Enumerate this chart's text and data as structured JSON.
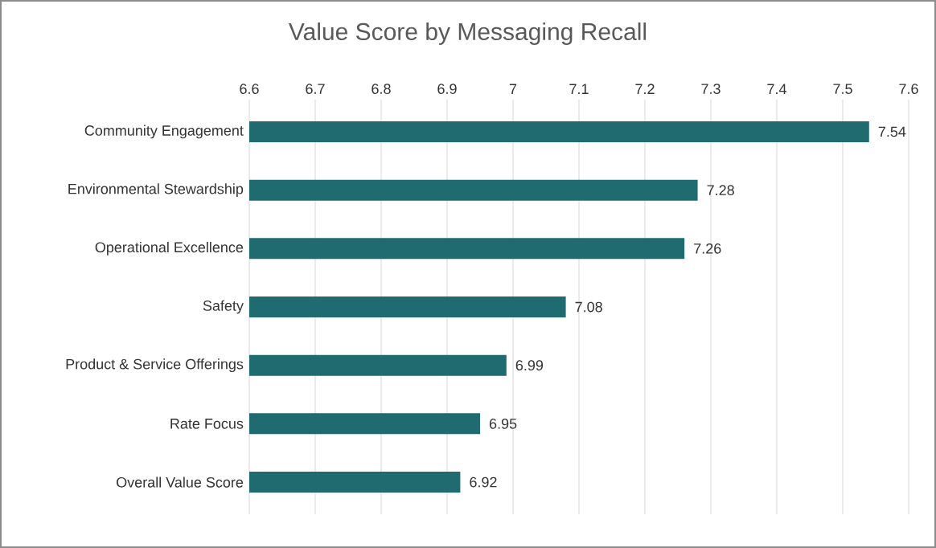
{
  "chart_data": {
    "type": "bar",
    "orientation": "horizontal",
    "title": "Value Score by Messaging Recall",
    "categories": [
      "Community Engagement",
      "Environmental Stewardship",
      "Operational Excellence",
      "Safety",
      "Product & Service Offerings",
      "Rate Focus",
      "Overall Value Score"
    ],
    "values": [
      7.54,
      7.28,
      7.26,
      7.08,
      6.99,
      6.95,
      6.92
    ],
    "color": "#1f6b6f",
    "xlim": [
      6.6,
      7.6
    ],
    "xticks": [
      6.6,
      6.7,
      6.8,
      6.9,
      7,
      7.1,
      7.2,
      7.3,
      7.4,
      7.5,
      7.6
    ],
    "grid": "x",
    "data_labels": true
  }
}
